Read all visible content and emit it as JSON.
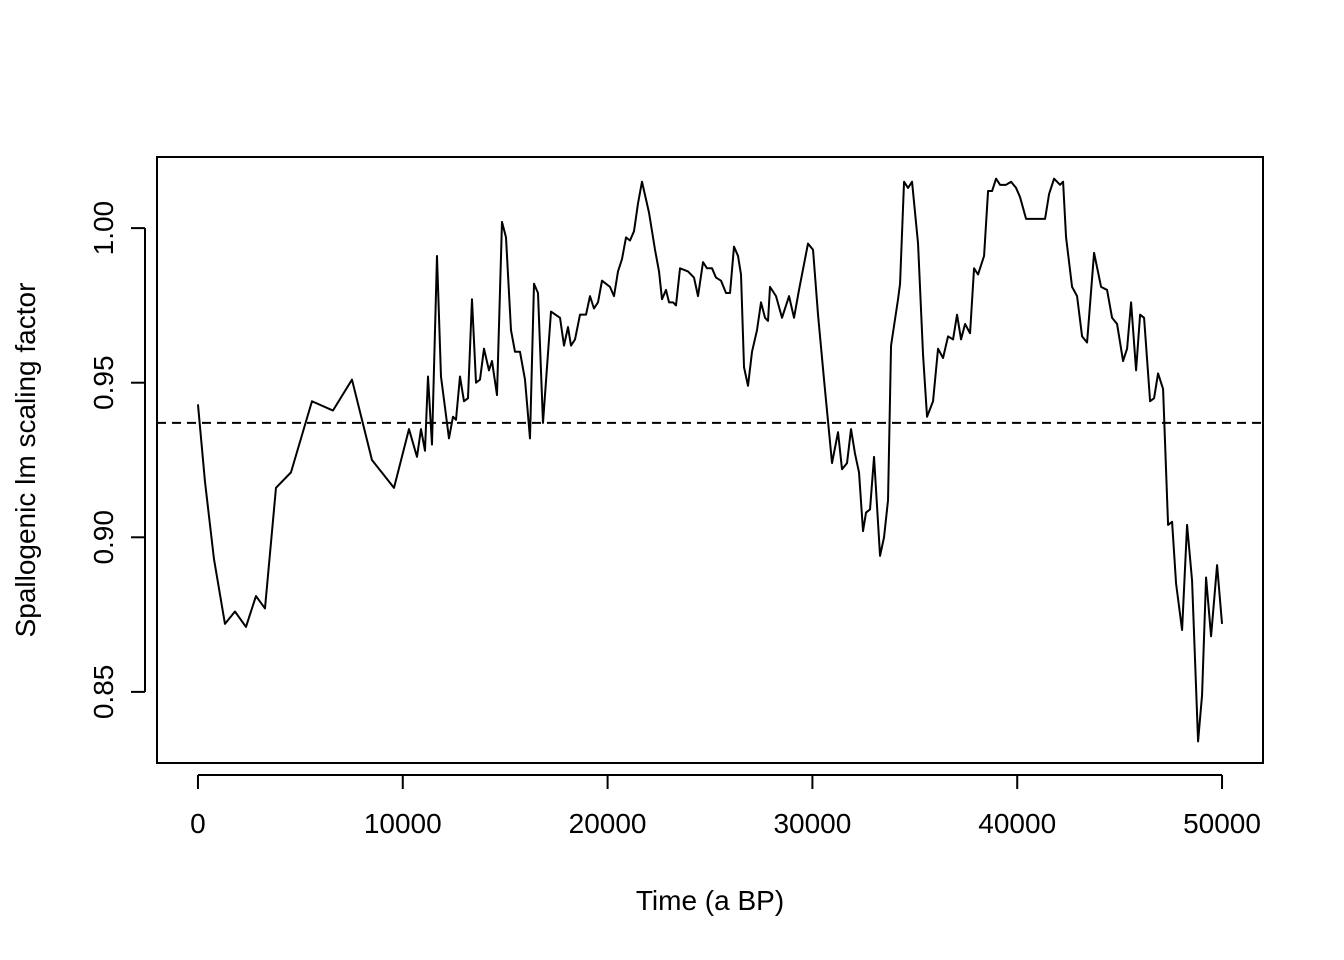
{
  "chart_data": {
    "type": "line",
    "x_label": "Time (a BP)",
    "y_label": "Spallogenic lm scaling factor",
    "x": [
      0,
      342,
      781,
      1318,
      1807,
      2344,
      2832,
      3272,
      3809,
      4541,
      5567,
      6592,
      7520,
      8496,
      9571,
      10303,
      10694,
      10889,
      11084,
      11231,
      11426,
      11670,
      11865,
      12256,
      12451,
      12598,
      12793,
      12988,
      13184,
      13379,
      13575,
      13770,
      13965,
      14209,
      14356,
      14600,
      14844,
      15040,
      15284,
      15479,
      15723,
      15967,
      16211,
      16407,
      16602,
      16846,
      17237,
      17677,
      17872,
      18067,
      18213,
      18409,
      18653,
      18946,
      19141,
      19336,
      19532,
      19727,
      20118,
      20313,
      20508,
      20704,
      20899,
      21094,
      21290,
      21485,
      21680,
      22022,
      22315,
      22511,
      22657,
      22852,
      22999,
      23194,
      23340,
      23536,
      23926,
      24219,
      24415,
      24659,
      24854,
      25098,
      25293,
      25537,
      25782,
      25977,
      26172,
      26368,
      26514,
      26661,
      26856,
      27051,
      27295,
      27491,
      27686,
      27833,
      27930,
      28223,
      28516,
      28858,
      29102,
      29346,
      29785,
      30030,
      30274,
      30567,
      30958,
      31251,
      31446,
      31690,
      31885,
      32081,
      32276,
      32471,
      32618,
      32813,
      33009,
      33302,
      33497,
      33692,
      33839,
      34181,
      34279,
      34474,
      34670,
      34865,
      35158,
      35402,
      35597,
      35890,
      36134,
      36378,
      36623,
      36867,
      37062,
      37258,
      37453,
      37697,
      37892,
      38088,
      38381,
      38576,
      38772,
      38967,
      39162,
      39455,
      39699,
      39944,
      40139,
      40432,
      41360,
      41555,
      41799,
      42092,
      42239,
      42385,
      42678,
      42922,
      43166,
      43410,
      43752,
      44094,
      44387,
      44631,
      44875,
      45168,
      45364,
      45559,
      45803,
      45999,
      46194,
      46487,
      46682,
      46877,
      47121,
      47365,
      47561,
      47756,
      48049,
      48293,
      48537,
      48830,
      49025,
      49220,
      49465,
      49758,
      50000
    ],
    "values": [
      0.943,
      0.918,
      0.893,
      0.872,
      0.876,
      0.871,
      0.881,
      0.877,
      0.916,
      0.921,
      0.944,
      0.941,
      0.951,
      0.925,
      0.916,
      0.935,
      0.926,
      0.935,
      0.928,
      0.952,
      0.93,
      0.991,
      0.952,
      0.932,
      0.939,
      0.938,
      0.952,
      0.944,
      0.945,
      0.977,
      0.95,
      0.951,
      0.961,
      0.954,
      0.957,
      0.946,
      1.002,
      0.997,
      0.967,
      0.96,
      0.96,
      0.951,
      0.932,
      0.982,
      0.979,
      0.937,
      0.973,
      0.971,
      0.962,
      0.968,
      0.962,
      0.964,
      0.972,
      0.972,
      0.978,
      0.974,
      0.976,
      0.983,
      0.981,
      0.978,
      0.986,
      0.99,
      0.997,
      0.996,
      0.999,
      1.008,
      1.015,
      1.005,
      0.993,
      0.986,
      0.977,
      0.98,
      0.976,
      0.976,
      0.975,
      0.987,
      0.986,
      0.984,
      0.978,
      0.989,
      0.987,
      0.987,
      0.984,
      0.983,
      0.979,
      0.979,
      0.994,
      0.991,
      0.985,
      0.955,
      0.949,
      0.96,
      0.967,
      0.976,
      0.971,
      0.97,
      0.981,
      0.978,
      0.971,
      0.978,
      0.971,
      0.98,
      0.995,
      0.993,
      0.972,
      0.951,
      0.924,
      0.934,
      0.922,
      0.924,
      0.935,
      0.927,
      0.921,
      0.902,
      0.908,
      0.909,
      0.926,
      0.894,
      0.9,
      0.912,
      0.962,
      0.977,
      0.982,
      1.015,
      1.013,
      1.015,
      0.995,
      0.959,
      0.939,
      0.944,
      0.961,
      0.958,
      0.965,
      0.964,
      0.972,
      0.964,
      0.969,
      0.966,
      0.987,
      0.985,
      0.991,
      1.012,
      1.012,
      1.016,
      1.014,
      1.014,
      1.015,
      1.013,
      1.01,
      1.003,
      1.003,
      1.011,
      1.016,
      1.014,
      1.015,
      0.997,
      0.981,
      0.978,
      0.965,
      0.963,
      0.992,
      0.981,
      0.98,
      0.971,
      0.969,
      0.957,
      0.961,
      0.976,
      0.954,
      0.972,
      0.971,
      0.944,
      0.945,
      0.953,
      0.948,
      0.904,
      0.905,
      0.885,
      0.87,
      0.904,
      0.886,
      0.834,
      0.849,
      0.887,
      0.868,
      0.891,
      0.872
    ],
    "color": "#000000",
    "hline": 0.937,
    "xlim": [
      -2000,
      52000
    ],
    "ylim": [
      0.827,
      1.023
    ],
    "xticks": [
      0,
      10000,
      20000,
      30000,
      40000,
      50000
    ],
    "yticks": [
      {
        "value": 0.85,
        "label": "0.85"
      },
      {
        "value": 0.9,
        "label": "0.90"
      },
      {
        "value": 0.95,
        "label": "0.95"
      },
      {
        "value": 1.0,
        "label": "1.00"
      }
    ]
  }
}
